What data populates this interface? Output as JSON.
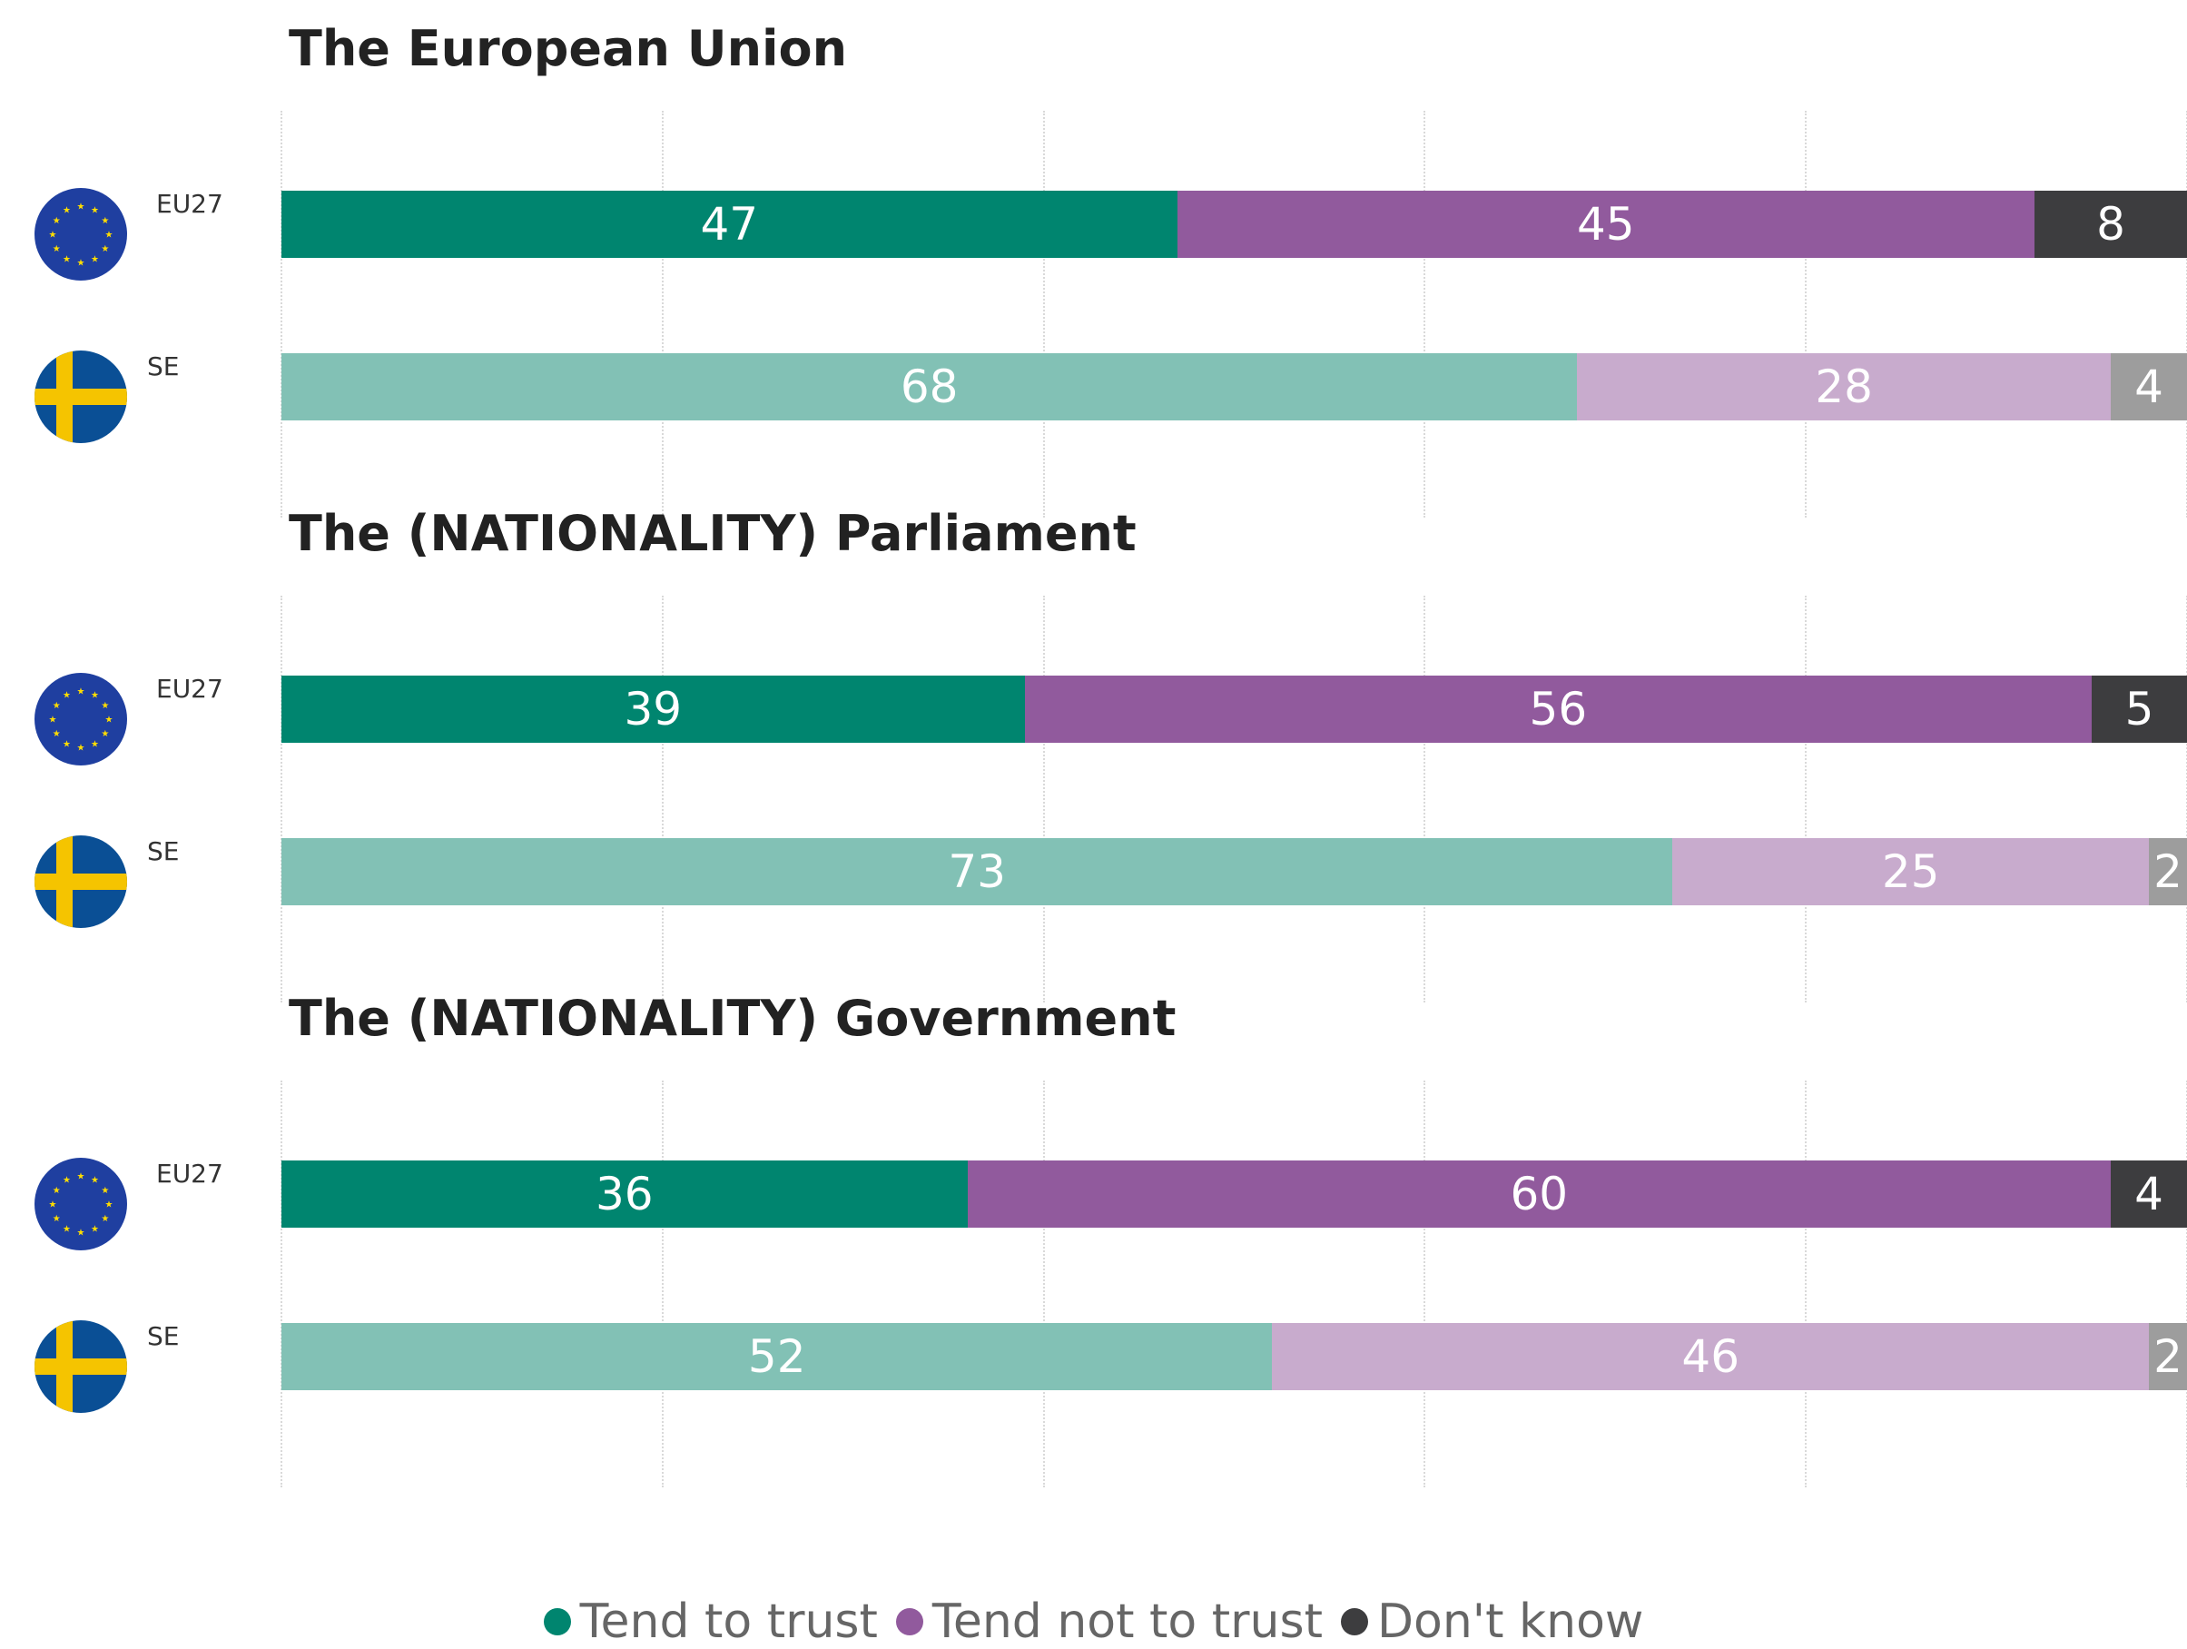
{
  "chart_data": {
    "type": "bar",
    "stacked": true,
    "orientation": "horizontal",
    "xlim": [
      0,
      100
    ],
    "grid": true,
    "legend_position": "bottom",
    "legend": [
      {
        "name": "Tend to trust",
        "color": "#00856f"
      },
      {
        "name": "Tend not to trust",
        "color": "#915a9d"
      },
      {
        "name": "Don't know",
        "color": "#3d3d3f"
      }
    ],
    "panels": [
      {
        "title": "The European Union",
        "rows": [
          {
            "label": "EU27",
            "flag": "eu-flag-icon",
            "values": [
              47,
              45,
              8
            ]
          },
          {
            "label": "SE",
            "flag": "sweden-flag-icon",
            "values": [
              68,
              28,
              4
            ]
          }
        ]
      },
      {
        "title": "The (NATIONALITY) Parliament",
        "rows": [
          {
            "label": "EU27",
            "flag": "eu-flag-icon",
            "values": [
              39,
              56,
              5
            ]
          },
          {
            "label": "SE",
            "flag": "sweden-flag-icon",
            "values": [
              73,
              25,
              2
            ]
          }
        ]
      },
      {
        "title": "The (NATIONALITY) Government",
        "rows": [
          {
            "label": "EU27",
            "flag": "eu-flag-icon",
            "values": [
              36,
              60,
              4
            ]
          },
          {
            "label": "SE",
            "flag": "sweden-flag-icon",
            "values": [
              52,
              46,
              2
            ]
          }
        ]
      }
    ]
  },
  "colors": {
    "eu27": [
      "#00856f",
      "#915a9d",
      "#3d3d3f"
    ],
    "country": [
      "#82c1b5",
      "#c8abcd",
      "#9d9d9d"
    ],
    "title": "#222222",
    "legend_text": "#666666"
  }
}
